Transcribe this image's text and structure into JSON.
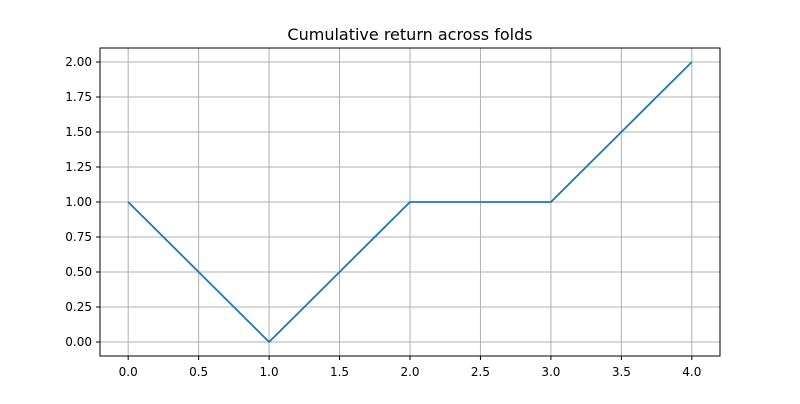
{
  "chart_data": {
    "type": "line",
    "title": "Cumulative return across folds",
    "xlabel": "",
    "ylabel": "",
    "x": [
      0,
      1,
      2,
      3,
      4
    ],
    "series": [
      {
        "values": [
          1.0,
          0.0,
          1.0,
          1.0,
          2.0
        ],
        "color": "#1f77b4"
      }
    ],
    "xlim": [
      -0.2,
      4.2
    ],
    "ylim": [
      -0.1,
      2.1
    ],
    "xticks": [
      0.0,
      0.5,
      1.0,
      1.5,
      2.0,
      2.5,
      3.0,
      3.5,
      4.0
    ],
    "xtick_labels": [
      "0.0",
      "0.5",
      "1.0",
      "1.5",
      "2.0",
      "2.5",
      "3.0",
      "3.5",
      "4.0"
    ],
    "yticks": [
      0.0,
      0.25,
      0.5,
      0.75,
      1.0,
      1.25,
      1.5,
      1.75,
      2.0
    ],
    "ytick_labels": [
      "0.00",
      "0.25",
      "0.50",
      "0.75",
      "1.00",
      "1.25",
      "1.50",
      "1.75",
      "2.00"
    ],
    "grid": true,
    "legend": "none"
  }
}
